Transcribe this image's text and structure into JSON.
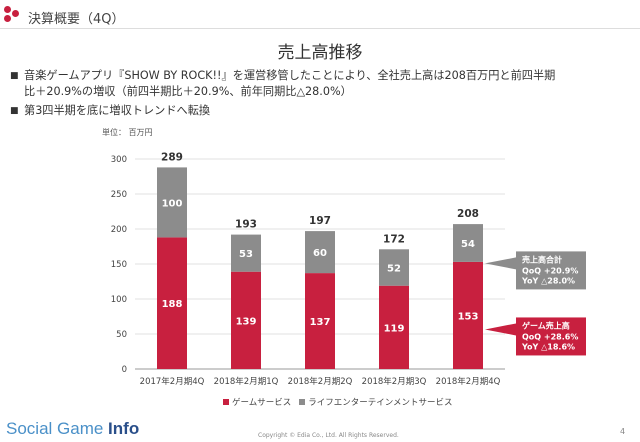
{
  "header": {
    "title": "決算概要（4Q）"
  },
  "slide_title": "売上高推移",
  "bullets": [
    "音楽ゲームアプリ『SHOW BY ROCK!!』を運営移管したことにより、全社売上高は208百万円と前四半期比＋20.9%の増収（前四半期比＋20.9%、前年同期比△28.0%）",
    "第3四半期を底に増収トレンドへ転換"
  ],
  "bullet_lines": [
    [
      "音楽ゲームアプリ『SHOW BY ROCK!!』を運営移管したことにより、全社売上高は208百万円と前四半期",
      "比＋20.9%の増収（前四半期比＋20.9%、前年同期比△28.0%）"
    ],
    [
      "第3四半期を底に増収トレンドへ転換"
    ]
  ],
  "unit_label": "単位： 百万円",
  "chart_data": {
    "type": "bar",
    "stacked": true,
    "categories": [
      "2017年2月期4Q",
      "2018年2月期1Q",
      "2018年2月期2Q",
      "2018年2月期3Q",
      "2018年2月期4Q"
    ],
    "series": [
      {
        "name": "ゲームサービス",
        "values": [
          188,
          139,
          137,
          119,
          153
        ],
        "color": "#c8203f"
      },
      {
        "name": "ライフエンターテインメントサービス",
        "values": [
          100,
          53,
          60,
          52,
          54
        ],
        "color": "#8c8c8c"
      }
    ],
    "totals": [
      289,
      193,
      197,
      172,
      208
    ],
    "ylim": [
      0,
      300
    ],
    "yticks": [
      0,
      50,
      100,
      150,
      200,
      250,
      300
    ],
    "grid": true,
    "legend_position": "bottom",
    "annotations": [
      {
        "title": "売上高合計",
        "lines": [
          "QoQ +20.9%",
          "YoY  △28.0%"
        ],
        "color": "#8c8c8c",
        "anchor_series": 1
      },
      {
        "title": "ゲーム売上高",
        "lines": [
          "QoQ +28.6%",
          "YoY  △18.6%"
        ],
        "color": "#c8203f",
        "anchor_series": 0
      }
    ]
  },
  "footer": {
    "brand_light": "Social Game ",
    "brand_bold": "Info",
    "copyright": "Copyright © Edia Co., Ltd. All Rights Reserved.",
    "page_number": "4"
  }
}
